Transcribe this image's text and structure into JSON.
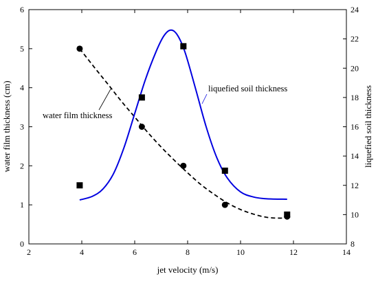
{
  "chart_data": {
    "type": "scatter",
    "x_axis": {
      "label": "jet velocity (m/s)",
      "range": [
        2,
        14
      ],
      "ticks": [
        "2",
        "4",
        "6",
        "8",
        "10",
        "12",
        "14"
      ],
      "tick_values": [
        2,
        4,
        6,
        8,
        10,
        12,
        14
      ]
    },
    "y_axis_left": {
      "label": "water film thickness (cm)",
      "range": [
        0,
        6
      ],
      "ticks": [
        "0",
        "1",
        "2",
        "3",
        "4",
        "5",
        "6"
      ],
      "tick_values": [
        0,
        1,
        2,
        3,
        4,
        5,
        6
      ]
    },
    "y_axis_right": {
      "label": "liquefied soil thickness",
      "range": [
        8,
        24
      ],
      "ticks": [
        "8",
        "10",
        "12",
        "14",
        "16",
        "18",
        "20",
        "22",
        "24"
      ],
      "tick_values": [
        8,
        10,
        12,
        14,
        16,
        18,
        20,
        22,
        24
      ]
    },
    "series": [
      {
        "name": "water film thickness",
        "axis": "left",
        "marker": "circle",
        "color": "#000000",
        "line_style": "dashed",
        "points": [
          {
            "x": 3.92,
            "y": 5.0
          },
          {
            "x": 6.27,
            "y": 3.0
          },
          {
            "x": 7.84,
            "y": 2.0
          },
          {
            "x": 9.41,
            "y": 1.0
          },
          {
            "x": 11.76,
            "y": 0.7
          }
        ],
        "fit": [
          {
            "x": 3.92,
            "y": 5.0
          },
          {
            "x": 4.5,
            "y": 4.5
          },
          {
            "x": 5.0,
            "y": 4.08
          },
          {
            "x": 5.5,
            "y": 3.65
          },
          {
            "x": 6.0,
            "y": 3.25
          },
          {
            "x": 6.5,
            "y": 2.85
          },
          {
            "x": 7.0,
            "y": 2.48
          },
          {
            "x": 7.5,
            "y": 2.14
          },
          {
            "x": 8.0,
            "y": 1.82
          },
          {
            "x": 8.5,
            "y": 1.52
          },
          {
            "x": 9.0,
            "y": 1.27
          },
          {
            "x": 9.5,
            "y": 1.05
          },
          {
            "x": 10.0,
            "y": 0.88
          },
          {
            "x": 10.5,
            "y": 0.76
          },
          {
            "x": 11.0,
            "y": 0.68
          },
          {
            "x": 11.5,
            "y": 0.66
          },
          {
            "x": 11.76,
            "y": 0.68
          }
        ]
      },
      {
        "name": "liquefied soil thickness",
        "axis": "right",
        "marker": "square",
        "color": "#0000e0",
        "line_style": "solid",
        "points": [
          {
            "x": 3.92,
            "y": 12.0
          },
          {
            "x": 6.27,
            "y": 18.0
          },
          {
            "x": 7.84,
            "y": 21.5
          },
          {
            "x": 9.41,
            "y": 13.0
          },
          {
            "x": 11.76,
            "y": 10.0
          }
        ],
        "fit": [
          {
            "x": 3.92,
            "y": 11.0
          },
          {
            "x": 4.4,
            "y": 11.25
          },
          {
            "x": 4.8,
            "y": 11.75
          },
          {
            "x": 5.2,
            "y": 12.8
          },
          {
            "x": 5.6,
            "y": 14.6
          },
          {
            "x": 6.0,
            "y": 16.9
          },
          {
            "x": 6.4,
            "y": 19.2
          },
          {
            "x": 6.8,
            "y": 21.1
          },
          {
            "x": 7.1,
            "y": 22.2
          },
          {
            "x": 7.35,
            "y": 22.6
          },
          {
            "x": 7.6,
            "y": 22.3
          },
          {
            "x": 7.9,
            "y": 21.1
          },
          {
            "x": 8.3,
            "y": 18.6
          },
          {
            "x": 8.7,
            "y": 16.0
          },
          {
            "x": 9.1,
            "y": 13.9
          },
          {
            "x": 9.5,
            "y": 12.5
          },
          {
            "x": 10.0,
            "y": 11.55
          },
          {
            "x": 10.5,
            "y": 11.2
          },
          {
            "x": 11.0,
            "y": 11.08
          },
          {
            "x": 11.76,
            "y": 11.05
          }
        ]
      }
    ],
    "annotations": [
      {
        "text": "water film thickness",
        "series": "water film thickness"
      },
      {
        "text": "liquefied soil thickness",
        "series": "liquefied soil thickness"
      }
    ],
    "grid": false,
    "legend": "none"
  }
}
